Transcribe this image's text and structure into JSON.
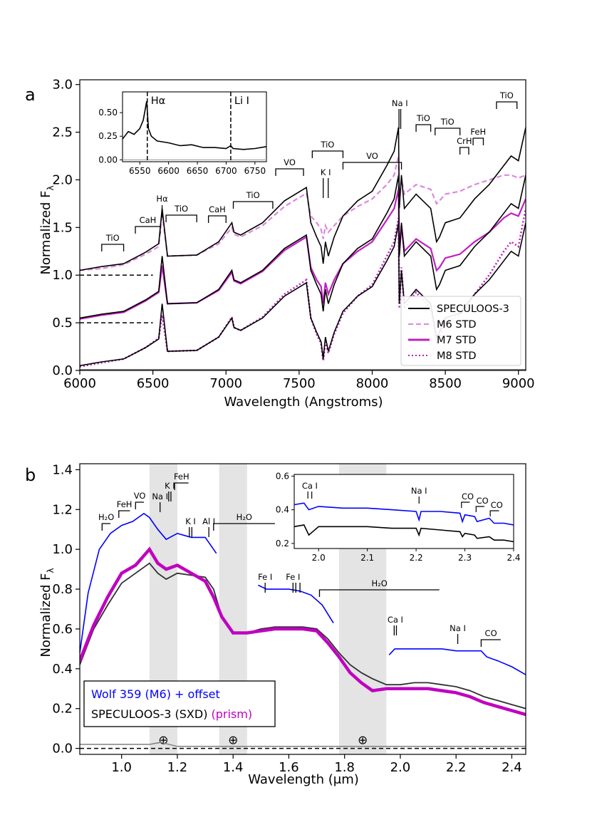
{
  "chart_data": [
    {
      "panel": "a",
      "type": "line",
      "xlabel": "Wavelength (Angstroms)",
      "ylabel": "Normalized F",
      "ylabel_sub": "λ",
      "xlim": [
        6000,
        9050
      ],
      "ylim": [
        0.0,
        3.05
      ],
      "xticks": [
        6000,
        6500,
        7000,
        7500,
        8000,
        8500,
        9000
      ],
      "yticks": [
        0.0,
        0.5,
        1.0,
        1.5,
        2.0,
        2.5,
        3.0
      ],
      "ytick_labels": [
        "0.0",
        "0.5",
        "1.0",
        "1.5",
        "2.0",
        "2.5",
        "3.0"
      ],
      "legend": {
        "placement": "lower-right",
        "entries": [
          {
            "label": "SPECULOOS-3",
            "color": "#000000",
            "style": "solid"
          },
          {
            "label": "M6 STD",
            "color": "#dd88dd",
            "style": "dashed"
          },
          {
            "label": "M7 STD",
            "color": "#c020c0",
            "style": "solid"
          },
          {
            "label": "M8 STD",
            "color": "#c020c0",
            "style": "dotted"
          }
        ]
      },
      "offsets": [
        1.0,
        0.5
      ],
      "template_x": [
        6000,
        6150,
        6300,
        6450,
        6540,
        6563,
        6600,
        6800,
        6950,
        7040,
        7055,
        7100,
        7250,
        7400,
        7550,
        7580,
        7620,
        7650,
        7665,
        7680,
        7700,
        7740,
        7800,
        7900,
        8000,
        8100,
        8150,
        8180,
        8185,
        8200,
        8220,
        8300,
        8400,
        8440,
        8460,
        8500,
        8600,
        8700,
        8800,
        8900,
        8950,
        9000,
        9050
      ],
      "series": [
        {
          "name": "SPECULOOS-3",
          "color": "#000000",
          "style": "solid",
          "offset_index": 0,
          "y": [
            0.05,
            0.09,
            0.12,
            0.24,
            0.33,
            0.7,
            0.2,
            0.21,
            0.35,
            0.55,
            0.45,
            0.42,
            0.55,
            0.78,
            0.92,
            0.55,
            0.4,
            0.3,
            0.12,
            0.35,
            0.2,
            0.4,
            0.62,
            0.78,
            0.88,
            1.15,
            1.3,
            1.55,
            0.7,
            1.05,
            0.7,
            0.85,
            0.7,
            0.35,
            0.4,
            0.55,
            0.6,
            0.8,
            0.95,
            1.15,
            1.25,
            1.2,
            1.55
          ]
        },
        {
          "name": "M6 STD",
          "color": "#dd88dd",
          "style": "dashed",
          "offset_index": 0,
          "y": [
            0.05,
            0.07,
            0.11,
            0.22,
            0.3,
            0.65,
            0.2,
            0.21,
            0.33,
            0.5,
            0.43,
            0.4,
            0.52,
            0.72,
            0.86,
            0.62,
            0.55,
            0.48,
            0.38,
            0.52,
            0.45,
            0.52,
            0.62,
            0.72,
            0.8,
            0.95,
            1.05,
            1.25,
            0.8,
            1.0,
            0.85,
            0.95,
            0.9,
            0.75,
            0.78,
            0.85,
            0.88,
            0.95,
            1.0,
            1.05,
            1.05,
            1.02,
            1.05
          ]
        },
        {
          "name": "M7 STD",
          "color": "#c020c0",
          "style": "solid",
          "offset_index": 0,
          "y": [
            0.04,
            0.08,
            0.11,
            0.23,
            0.32,
            0.6,
            0.2,
            0.21,
            0.34,
            0.53,
            0.44,
            0.41,
            0.54,
            0.76,
            0.9,
            0.58,
            0.45,
            0.38,
            0.2,
            0.42,
            0.3,
            0.45,
            0.62,
            0.75,
            0.85,
            1.08,
            1.2,
            1.4,
            0.72,
            1.02,
            0.75,
            0.88,
            0.78,
            0.55,
            0.58,
            0.68,
            0.72,
            0.85,
            0.95,
            1.1,
            1.15,
            1.12,
            1.3
          ]
        },
        {
          "name": "M8 STD",
          "color": "#c020c0",
          "style": "dotted",
          "offset_index": 0,
          "y": [
            0.04,
            0.08,
            0.12,
            0.24,
            0.34,
            0.58,
            0.2,
            0.21,
            0.35,
            0.56,
            0.45,
            0.42,
            0.56,
            0.8,
            0.95,
            0.55,
            0.38,
            0.28,
            0.1,
            0.3,
            0.18,
            0.38,
            0.6,
            0.78,
            0.9,
            1.2,
            1.35,
            1.6,
            0.65,
            1.08,
            0.65,
            0.82,
            0.65,
            0.3,
            0.35,
            0.5,
            0.58,
            0.8,
            1.0,
            1.25,
            1.35,
            1.3,
            1.7
          ]
        },
        {
          "name": "noise",
          "color": "#808080",
          "style": "solid",
          "x": [
            6000,
            9050
          ],
          "y": [
            0.01,
            0.01
          ]
        }
      ],
      "annotations": [
        {
          "text": "TiO",
          "x1": 6150,
          "x2": 6300
        },
        {
          "text": "CaH",
          "x1": 6380,
          "x2": 6550
        },
        {
          "text": "Hα",
          "x1": 6563,
          "x2": 6563,
          "line": true
        },
        {
          "text": "TiO",
          "x1": 6590,
          "x2": 6800
        },
        {
          "text": "CaH",
          "x1": 6880,
          "x2": 7000
        },
        {
          "text": "TiO",
          "x1": 7050,
          "x2": 7320
        },
        {
          "text": "VO",
          "x1": 7340,
          "x2": 7530
        },
        {
          "text": "TiO",
          "x1": 7590,
          "x2": 7800
        },
        {
          "text": "K I",
          "x1": 7665,
          "x2": 7699,
          "double": true
        },
        {
          "text": "VO",
          "x1": 7800,
          "x2": 8200
        },
        {
          "text": "Na I",
          "x1": 8183,
          "x2": 8195,
          "double": true
        },
        {
          "text": "TiO",
          "x1": 8300,
          "x2": 8400
        },
        {
          "text": "TiO",
          "x1": 8430,
          "x2": 8600
        },
        {
          "text": "CrH",
          "x1": 8600,
          "x2": 8660
        },
        {
          "text": "FeH",
          "x1": 8690,
          "x2": 8760
        },
        {
          "text": "TiO",
          "x1": 8850,
          "x2": 8990
        }
      ],
      "inset": {
        "type": "line",
        "xlim": [
          6520,
          6770
        ],
        "ylim": [
          -0.02,
          0.72
        ],
        "xticks": [
          6550,
          6600,
          6650,
          6700,
          6750
        ],
        "yticks": [
          0.0,
          0.25,
          0.5
        ],
        "ytick_labels": [
          "0.00",
          "0.25",
          "0.50"
        ],
        "x": [
          6520,
          6530,
          6540,
          6550,
          6556,
          6562,
          6565,
          6570,
          6580,
          6600,
          6620,
          6640,
          6660,
          6680,
          6700,
          6708,
          6712,
          6730,
          6750,
          6770
        ],
        "y": [
          0.22,
          0.3,
          0.27,
          0.33,
          0.42,
          0.62,
          0.33,
          0.25,
          0.2,
          0.18,
          0.15,
          0.16,
          0.13,
          0.13,
          0.12,
          0.15,
          0.12,
          0.11,
          0.12,
          0.14
        ],
        "markers": [
          {
            "text": "Hα",
            "x": 6563
          },
          {
            "text": "Li I",
            "x": 6708
          }
        ]
      }
    },
    {
      "panel": "b",
      "type": "line",
      "xlabel": "Wavelength (μm)",
      "ylabel": "Normalized F",
      "ylabel_sub": "λ",
      "xlim": [
        0.85,
        2.45
      ],
      "ylim": [
        -0.03,
        1.43
      ],
      "xticks": [
        1.0,
        1.2,
        1.4,
        1.6,
        1.8,
        2.0,
        2.2,
        2.4
      ],
      "xtick_labels": [
        "1.0",
        "1.2",
        "1.4",
        "1.6",
        "1.8",
        "2.0",
        "2.2",
        "2.4"
      ],
      "yticks": [
        0.0,
        0.2,
        0.4,
        0.6,
        0.8,
        1.0,
        1.2,
        1.4
      ],
      "ytick_labels": [
        "0.0",
        "0.2",
        "0.4",
        "0.6",
        "0.8",
        "1.0",
        "1.2",
        "1.4"
      ],
      "telluric_bands": [
        [
          1.1,
          1.2
        ],
        [
          1.35,
          1.45
        ],
        [
          1.78,
          1.95
        ]
      ],
      "telluric_symbol": "⊕",
      "legend": {
        "placement": "lower-left",
        "entries": [
          {
            "label": "Wolf 359 (M6) + offset",
            "color": "#0000ff"
          },
          {
            "label": "SPECULOOS-3 (SXD)",
            "color": "#000000"
          },
          {
            "label": "(prism)",
            "color": "#c000c0"
          }
        ]
      },
      "series": [
        {
          "name": "Wolf 359 (M6) + offset",
          "color": "#0000ff",
          "segments": [
            {
              "x": [
                0.85,
                0.88,
                0.92,
                0.96,
                1.0,
                1.04,
                1.08,
                1.1,
                1.13,
                1.16,
                1.2,
                1.25,
                1.3,
                1.34
              ],
              "y": [
                0.48,
                0.78,
                1.0,
                1.08,
                1.12,
                1.14,
                1.18,
                1.16,
                1.1,
                1.05,
                1.08,
                1.06,
                1.06,
                0.98
              ]
            },
            {
              "x": [
                1.49,
                1.52,
                1.56,
                1.6,
                1.64,
                1.68,
                1.72,
                1.76
              ],
              "y": [
                0.82,
                0.8,
                0.8,
                0.8,
                0.79,
                0.77,
                0.72,
                0.63
              ]
            },
            {
              "x": [
                1.96,
                1.98,
                2.0,
                2.05,
                2.1,
                2.15,
                2.2,
                2.25,
                2.29,
                2.31,
                2.35,
                2.4,
                2.45
              ],
              "y": [
                0.47,
                0.5,
                0.5,
                0.5,
                0.5,
                0.5,
                0.49,
                0.49,
                0.49,
                0.46,
                0.44,
                0.41,
                0.37
              ]
            }
          ]
        },
        {
          "name": "SPECULOOS-3 (SXD)",
          "color": "#303030",
          "x": [
            0.85,
            0.9,
            0.95,
            1.0,
            1.05,
            1.1,
            1.13,
            1.16,
            1.2,
            1.25,
            1.3,
            1.33,
            1.36,
            1.4,
            1.45,
            1.5,
            1.55,
            1.6,
            1.65,
            1.7,
            1.74,
            1.78,
            1.82,
            1.86,
            1.9,
            1.95,
            2.0,
            2.05,
            2.1,
            2.15,
            2.2,
            2.25,
            2.3,
            2.35,
            2.4,
            2.45
          ],
          "y": [
            0.42,
            0.6,
            0.72,
            0.83,
            0.88,
            0.93,
            0.88,
            0.85,
            0.88,
            0.87,
            0.86,
            0.8,
            0.66,
            0.58,
            0.58,
            0.6,
            0.61,
            0.61,
            0.61,
            0.6,
            0.55,
            0.48,
            0.42,
            0.38,
            0.35,
            0.32,
            0.32,
            0.33,
            0.33,
            0.32,
            0.31,
            0.29,
            0.26,
            0.24,
            0.22,
            0.2
          ]
        },
        {
          "name": "(prism)",
          "color": "#c000c0",
          "x": [
            0.85,
            0.9,
            0.95,
            1.0,
            1.05,
            1.1,
            1.13,
            1.16,
            1.2,
            1.25,
            1.3,
            1.33,
            1.36,
            1.4,
            1.45,
            1.5,
            1.55,
            1.6,
            1.65,
            1.7,
            1.74,
            1.78,
            1.82,
            1.86,
            1.9,
            1.95,
            2.0,
            2.05,
            2.1,
            2.15,
            2.2,
            2.25,
            2.3,
            2.35,
            2.4,
            2.45
          ],
          "y": [
            0.44,
            0.62,
            0.76,
            0.88,
            0.92,
            1.0,
            0.93,
            0.9,
            0.92,
            0.88,
            0.84,
            0.76,
            0.66,
            0.58,
            0.58,
            0.59,
            0.6,
            0.6,
            0.6,
            0.59,
            0.53,
            0.46,
            0.38,
            0.33,
            0.29,
            0.3,
            0.3,
            0.3,
            0.3,
            0.29,
            0.28,
            0.26,
            0.23,
            0.21,
            0.19,
            0.17
          ]
        },
        {
          "name": "noise",
          "color": "#808080",
          "x": [
            0.85,
            1.1,
            1.14,
            1.2,
            2.45
          ],
          "y": [
            0.02,
            0.02,
            0.03,
            0.01,
            0.01
          ]
        }
      ],
      "zero_line": 0.0,
      "annotations": [
        {
          "text": "H₂O",
          "x1": 0.93,
          "x2": 0.96
        },
        {
          "text": "FeH",
          "x1": 0.99,
          "x2": 1.03
        },
        {
          "text": "VO",
          "x1": 1.05,
          "x2": 1.08
        },
        {
          "text": "Na I",
          "x1": 1.138,
          "x2": 1.138
        },
        {
          "text": "K I",
          "x1": 1.169,
          "x2": 1.177,
          "double": true
        },
        {
          "text": "FeH",
          "x1": 1.19,
          "x2": 1.24
        },
        {
          "text": "K I",
          "x1": 1.243,
          "x2": 1.252,
          "double": true
        },
        {
          "text": "Al I",
          "x1": 1.313,
          "x2": 1.313
        },
        {
          "text": "H₂O",
          "x1": 1.33,
          "x2": 1.55
        },
        {
          "text": "Fe I",
          "x1": 1.515,
          "x2": 1.515
        },
        {
          "text": "Fe I",
          "x1": 1.615,
          "x2": 1.615
        },
        {
          "text": "",
          "x1": 1.625,
          "x2": 1.64,
          "double": true
        },
        {
          "text": "H₂O",
          "x1": 1.71,
          "x2": 2.14
        },
        {
          "text": "Ca I",
          "x1": 1.978,
          "x2": 1.986,
          "double": true
        },
        {
          "text": "Na I",
          "x1": 2.206,
          "x2": 2.206
        },
        {
          "text": "CO",
          "x1": 2.29,
          "x2": 2.36
        }
      ],
      "inset": {
        "type": "line",
        "xlim": [
          1.95,
          2.4
        ],
        "ylim": [
          0.17,
          0.61
        ],
        "xticks": [
          2.0,
          2.1,
          2.2,
          2.3,
          2.4
        ],
        "xtick_labels": [
          "2.0",
          "2.1",
          "2.2",
          "2.3",
          "2.4"
        ],
        "yticks": [
          0.2,
          0.4,
          0.6
        ],
        "ytick_labels": [
          "0.2",
          "0.4",
          "0.6"
        ],
        "series": [
          {
            "color": "#0000ff",
            "x": [
              1.95,
              1.97,
              1.98,
              2.0,
              2.05,
              2.1,
              2.15,
              2.2,
              2.206,
              2.21,
              2.25,
              2.29,
              2.295,
              2.3,
              2.32,
              2.325,
              2.35,
              2.36,
              2.38,
              2.4
            ],
            "y": [
              0.43,
              0.44,
              0.4,
              0.42,
              0.41,
              0.41,
              0.4,
              0.39,
              0.34,
              0.39,
              0.39,
              0.38,
              0.33,
              0.37,
              0.36,
              0.33,
              0.35,
              0.32,
              0.32,
              0.31
            ]
          },
          {
            "color": "#000000",
            "x": [
              1.95,
              1.97,
              1.98,
              2.0,
              2.05,
              2.1,
              2.15,
              2.2,
              2.206,
              2.21,
              2.25,
              2.29,
              2.295,
              2.3,
              2.32,
              2.325,
              2.35,
              2.36,
              2.38,
              2.4
            ],
            "y": [
              0.3,
              0.31,
              0.25,
              0.3,
              0.3,
              0.3,
              0.29,
              0.29,
              0.25,
              0.29,
              0.28,
              0.27,
              0.24,
              0.26,
              0.25,
              0.23,
              0.24,
              0.22,
              0.22,
              0.21
            ]
          }
        ],
        "annotations": [
          {
            "text": "Ca I",
            "x1": 1.978,
            "x2": 1.986
          },
          {
            "text": "Na I",
            "x1": 2.206,
            "x2": 2.206
          },
          {
            "text": "CO",
            "x1": 2.293,
            "x2": 2.31
          },
          {
            "text": "CO",
            "x1": 2.323,
            "x2": 2.34
          },
          {
            "text": "CO",
            "x1": 2.352,
            "x2": 2.37
          }
        ]
      }
    }
  ]
}
